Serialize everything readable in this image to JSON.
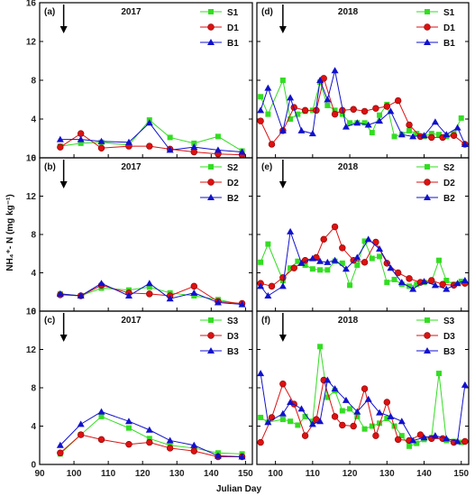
{
  "figure": {
    "ylabel": "NH₄⁺- N (mg kg⁻¹)",
    "xlabel": "Julian Day"
  },
  "chart_data": [
    {
      "id": "a",
      "type": "line",
      "panel_label": "(a)",
      "year": "2017",
      "xlim": [
        90,
        152
      ],
      "ylim": [
        0,
        16
      ],
      "arrow_x": 97,
      "legend": "top-right",
      "series": [
        {
          "name": "S1",
          "color": "#33dd22",
          "marker": "square",
          "x": [
            96,
            102,
            108,
            116,
            122,
            128,
            135,
            142,
            149
          ],
          "y": [
            1.2,
            1.5,
            1.6,
            1.3,
            3.9,
            2.1,
            1.5,
            2.2,
            0.7
          ]
        },
        {
          "name": "D1",
          "color": "#dd1111",
          "marker": "circle",
          "x": [
            96,
            102,
            108,
            116,
            122,
            128,
            135,
            142,
            149
          ],
          "y": [
            1.1,
            2.5,
            1.0,
            1.2,
            1.2,
            0.9,
            0.6,
            0.4,
            0.3
          ]
        },
        {
          "name": "B1",
          "color": "#1111cc",
          "marker": "triangle",
          "x": [
            96,
            102,
            108,
            116,
            122,
            128,
            135,
            142,
            149
          ],
          "y": [
            1.9,
            1.9,
            1.7,
            1.6,
            3.6,
            0.8,
            1.1,
            0.8,
            0.6
          ]
        }
      ]
    },
    {
      "id": "b",
      "type": "line",
      "panel_label": "(b)",
      "year": "2017",
      "xlim": [
        90,
        152
      ],
      "ylim": [
        0,
        16
      ],
      "arrow_x": 97,
      "legend": "top-right",
      "series": [
        {
          "name": "S2",
          "color": "#33dd22",
          "marker": "square",
          "x": [
            96,
            102,
            108,
            116,
            122,
            128,
            135,
            142,
            149
          ],
          "y": [
            1.8,
            1.6,
            2.4,
            2.2,
            2.5,
            1.9,
            1.6,
            1.2,
            0.7
          ]
        },
        {
          "name": "D2",
          "color": "#dd1111",
          "marker": "circle",
          "x": [
            96,
            102,
            108,
            116,
            122,
            128,
            135,
            142,
            149
          ],
          "y": [
            1.7,
            1.6,
            2.7,
            1.9,
            1.8,
            1.6,
            2.6,
            1.0,
            0.8
          ]
        },
        {
          "name": "B2",
          "color": "#1111cc",
          "marker": "triangle",
          "x": [
            96,
            102,
            108,
            116,
            122,
            128,
            135,
            142,
            149
          ],
          "y": [
            1.8,
            1.6,
            2.9,
            1.6,
            2.9,
            1.3,
            1.9,
            0.9,
            0.7
          ]
        }
      ]
    },
    {
      "id": "c",
      "type": "line",
      "panel_label": "(c)",
      "year": "2017",
      "xlim": [
        90,
        152
      ],
      "ylim": [
        0,
        16
      ],
      "arrow_x": 97,
      "legend": "top-right",
      "series": [
        {
          "name": "S3",
          "color": "#33dd22",
          "marker": "square",
          "x": [
            96,
            102,
            108,
            116,
            122,
            128,
            135,
            142,
            149
          ],
          "y": [
            1.1,
            3.1,
            5.0,
            3.8,
            2.7,
            2.0,
            1.7,
            1.2,
            1.1
          ]
        },
        {
          "name": "D3",
          "color": "#dd1111",
          "marker": "circle",
          "x": [
            96,
            102,
            108,
            116,
            122,
            128,
            135,
            142,
            149
          ],
          "y": [
            1.2,
            3.1,
            2.6,
            2.1,
            2.3,
            1.7,
            1.4,
            0.8,
            0.8
          ]
        },
        {
          "name": "B3",
          "color": "#1111cc",
          "marker": "triangle",
          "x": [
            96,
            102,
            108,
            116,
            122,
            128,
            135,
            142,
            149
          ],
          "y": [
            2.0,
            4.2,
            5.5,
            4.5,
            3.6,
            2.5,
            2.0,
            0.9,
            0.8
          ]
        }
      ]
    },
    {
      "id": "d",
      "type": "line",
      "panel_label": "(d)",
      "year": "2018",
      "xlim": [
        95,
        152
      ],
      "ylim": [
        0,
        16
      ],
      "arrow_x": 102,
      "legend": "top-right",
      "series": [
        {
          "name": "S1",
          "color": "#33dd22",
          "marker": "square",
          "x": [
            96,
            98,
            102,
            104,
            106,
            108,
            110,
            112,
            114,
            116,
            118,
            120,
            122,
            124,
            126,
            128,
            130,
            132,
            134,
            136,
            138,
            140,
            142,
            144,
            146,
            148,
            150
          ],
          "y": [
            6.3,
            4.5,
            8.0,
            4.0,
            4.5,
            4.8,
            4.9,
            7.8,
            5.4,
            4.9,
            4.5,
            3.6,
            3.6,
            3.6,
            2.6,
            4.4,
            5.5,
            2.2,
            2.4,
            2.8,
            2.5,
            2.2,
            2.5,
            2.4,
            2.2,
            2.5,
            4.1
          ]
        },
        {
          "name": "D1",
          "color": "#dd1111",
          "marker": "circle",
          "x": [
            96,
            99,
            102,
            105,
            108,
            111,
            113,
            116,
            118,
            121,
            124,
            127,
            130,
            133,
            136,
            139,
            142,
            145,
            148,
            151
          ],
          "y": [
            3.8,
            1.4,
            2.8,
            5.2,
            4.9,
            4.9,
            8.2,
            4.5,
            4.9,
            5.0,
            4.8,
            5.1,
            5.3,
            5.9,
            3.4,
            2.2,
            2.1,
            2.1,
            2.3,
            1.4
          ]
        },
        {
          "name": "B1",
          "color": "#1111cc",
          "marker": "triangle",
          "x": [
            96,
            98,
            102,
            104,
            107,
            110,
            112,
            114,
            116,
            119,
            122,
            125,
            128,
            131,
            134,
            137,
            140,
            143,
            146,
            149,
            151
          ],
          "y": [
            4.9,
            7.2,
            2.8,
            6.2,
            2.8,
            2.5,
            8.0,
            6.0,
            9.0,
            3.2,
            3.6,
            3.4,
            3.8,
            4.8,
            2.4,
            2.2,
            2.3,
            3.7,
            2.4,
            3.1,
            1.4
          ]
        }
      ]
    },
    {
      "id": "e",
      "type": "line",
      "panel_label": "(e)",
      "year": "2018",
      "xlim": [
        95,
        152
      ],
      "ylim": [
        0,
        16
      ],
      "arrow_x": 102,
      "legend": "top-right",
      "series": [
        {
          "name": "S2",
          "color": "#33dd22",
          "marker": "square",
          "x": [
            96,
            98,
            102,
            104,
            106,
            108,
            110,
            112,
            114,
            116,
            118,
            120,
            122,
            124,
            126,
            128,
            130,
            132,
            134,
            136,
            138,
            140,
            142,
            144,
            146,
            148,
            150
          ],
          "y": [
            5.1,
            7.0,
            3.2,
            4.5,
            5.2,
            4.8,
            4.4,
            4.3,
            4.3,
            5.2,
            5.0,
            2.7,
            4.8,
            7.3,
            5.5,
            5.7,
            3.0,
            3.3,
            2.8,
            2.6,
            2.8,
            3.0,
            3.1,
            5.3,
            3.2,
            2.8,
            3.1
          ]
        },
        {
          "name": "D2",
          "color": "#dd1111",
          "marker": "circle",
          "x": [
            96,
            99,
            102,
            105,
            108,
            111,
            113,
            116,
            118,
            121,
            124,
            127,
            130,
            133,
            136,
            139,
            142,
            145,
            148,
            151
          ],
          "y": [
            2.9,
            2.6,
            3.5,
            4.5,
            5.3,
            5.6,
            7.5,
            8.8,
            6.6,
            5.3,
            5.1,
            7.2,
            5.0,
            4.0,
            3.4,
            3.0,
            3.2,
            2.8,
            2.7,
            2.9
          ]
        },
        {
          "name": "B2",
          "color": "#1111cc",
          "marker": "triangle",
          "x": [
            96,
            98,
            102,
            104,
            107,
            110,
            112,
            114,
            116,
            119,
            122,
            125,
            128,
            131,
            134,
            137,
            140,
            143,
            146,
            149,
            151
          ],
          "y": [
            2.6,
            1.6,
            2.6,
            8.3,
            5.0,
            5.5,
            5.2,
            5.1,
            5.3,
            4.4,
            5.6,
            7.5,
            6.5,
            4.5,
            3.0,
            2.3,
            3.1,
            2.7,
            2.3,
            2.9,
            3.2
          ]
        }
      ]
    },
    {
      "id": "f",
      "type": "line",
      "panel_label": "(f)",
      "year": "2018",
      "xlim": [
        95,
        152
      ],
      "ylim": [
        0,
        16
      ],
      "arrow_x": 102,
      "legend": "top-right",
      "series": [
        {
          "name": "S3",
          "color": "#33dd22",
          "marker": "square",
          "x": [
            96,
            98,
            102,
            104,
            106,
            108,
            110,
            112,
            114,
            116,
            118,
            120,
            122,
            124,
            126,
            128,
            130,
            132,
            134,
            136,
            138,
            140,
            142,
            144,
            146,
            148,
            150
          ],
          "y": [
            4.9,
            4.4,
            4.7,
            4.5,
            4.1,
            5.0,
            4.5,
            12.3,
            7.0,
            7.7,
            5.6,
            5.8,
            5.0,
            3.7,
            4.0,
            4.3,
            4.8,
            4.0,
            3.0,
            1.9,
            2.2,
            2.6,
            2.8,
            9.5,
            2.5,
            2.4,
            2.3
          ]
        },
        {
          "name": "D3",
          "color": "#dd1111",
          "marker": "circle",
          "x": [
            96,
            99,
            102,
            105,
            108,
            111,
            113,
            116,
            118,
            121,
            124,
            127,
            130,
            133,
            136,
            139,
            142,
            145,
            148,
            151
          ],
          "y": [
            2.3,
            4.9,
            8.4,
            6.3,
            3.0,
            4.7,
            8.8,
            5.0,
            4.1,
            4.0,
            7.9,
            3.0,
            6.5,
            2.6,
            2.5,
            3.1,
            2.7,
            2.7,
            2.3,
            2.4
          ]
        },
        {
          "name": "B3",
          "color": "#1111cc",
          "marker": "triangle",
          "x": [
            96,
            98,
            102,
            104,
            107,
            110,
            112,
            114,
            116,
            119,
            122,
            125,
            128,
            131,
            134,
            137,
            140,
            143,
            146,
            149,
            151
          ],
          "y": [
            9.5,
            4.4,
            5.3,
            6.5,
            5.8,
            4.2,
            4.5,
            8.8,
            7.9,
            6.7,
            5.5,
            6.8,
            5.4,
            5.0,
            4.5,
            2.5,
            2.8,
            3.0,
            2.7,
            2.4,
            8.3
          ]
        }
      ]
    }
  ]
}
